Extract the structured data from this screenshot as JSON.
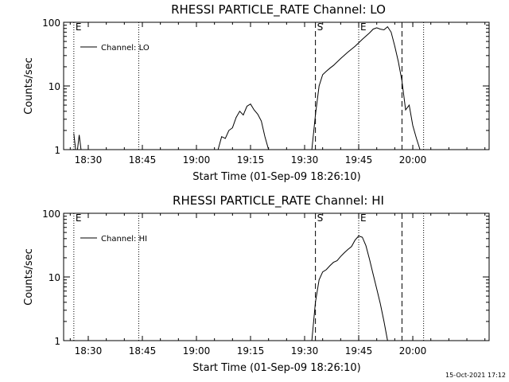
{
  "footer": {
    "timestamp": "15-Oct-2021 17:12"
  },
  "chart_data": [
    {
      "type": "line",
      "title": "RHESSI PARTICLE_RATE Channel: LO",
      "xlabel": "Start Time (01-Sep-09 18:26:10)",
      "ylabel": "Counts/sec",
      "yscale": "log",
      "ylim": [
        1,
        100
      ],
      "xlim_minutes_after_start": [
        -3,
        115
      ],
      "x_tick_labels": [
        "18:30",
        "18:45",
        "19:00",
        "19:15",
        "19:30",
        "19:45",
        "20:00"
      ],
      "y_tick_labels": [
        "1",
        "10",
        "100"
      ],
      "legend": {
        "position": "top-left",
        "entries": [
          "Channel: LO"
        ]
      },
      "markers": [
        {
          "time": "18:26",
          "style": "dotted",
          "letter": "E"
        },
        {
          "time": "18:44",
          "style": "dotted",
          "letter": ""
        },
        {
          "time": "19:33",
          "style": "dashed",
          "letter": "S"
        },
        {
          "time": "19:45",
          "style": "dotted",
          "letter": "E"
        },
        {
          "time": "19:57",
          "style": "dashed",
          "letter": ""
        },
        {
          "time": "20:03",
          "style": "dotted",
          "letter": ""
        }
      ],
      "series": [
        {
          "name": "Channel: LO",
          "segments": [
            [
              [
                "18:26",
                1.8
              ],
              [
                "18:26:30",
                1.0
              ],
              [
                "18:27",
                1.0
              ],
              [
                "18:27:30",
                1.7
              ],
              [
                "18:28",
                1.0
              ]
            ],
            [
              [
                "19:06",
                1.0
              ],
              [
                "19:07",
                1.6
              ],
              [
                "19:08",
                1.5
              ],
              [
                "19:09",
                2.0
              ],
              [
                "19:10",
                2.2
              ],
              [
                "19:11",
                3.2
              ],
              [
                "19:12",
                4.0
              ],
              [
                "19:13",
                3.5
              ],
              [
                "19:14",
                4.8
              ],
              [
                "19:15",
                5.2
              ],
              [
                "19:16",
                4.2
              ],
              [
                "19:17",
                3.6
              ],
              [
                "19:18",
                2.8
              ],
              [
                "19:19",
                1.6
              ],
              [
                "19:20",
                1.0
              ]
            ],
            [
              [
                "19:32",
                1.0
              ],
              [
                "19:33",
                3.5
              ],
              [
                "19:34",
                10
              ],
              [
                "19:35",
                15
              ],
              [
                "19:36",
                17
              ],
              [
                "19:37",
                19
              ],
              [
                "19:38",
                21
              ],
              [
                "19:40",
                27
              ],
              [
                "19:42",
                34
              ],
              [
                "19:44",
                42
              ],
              [
                "19:46",
                54
              ],
              [
                "19:48",
                68
              ],
              [
                "19:49",
                78
              ],
              [
                "19:50",
                82
              ],
              [
                "19:51",
                78
              ],
              [
                "19:52",
                76
              ],
              [
                "19:53",
                85
              ],
              [
                "19:54",
                70
              ],
              [
                "19:55",
                42
              ],
              [
                "19:56",
                24
              ],
              [
                "19:57",
                12
              ],
              [
                "19:58",
                4.2
              ],
              [
                "19:59",
                5.0
              ],
              [
                "20:00",
                2.4
              ],
              [
                "20:01",
                1.5
              ],
              [
                "20:02",
                1.0
              ]
            ]
          ]
        }
      ]
    },
    {
      "type": "line",
      "title": "RHESSI PARTICLE_RATE Channel: HI",
      "xlabel": "Start Time (01-Sep-09 18:26:10)",
      "ylabel": "Counts/sec",
      "yscale": "log",
      "ylim": [
        1,
        100
      ],
      "xlim_minutes_after_start": [
        -3,
        115
      ],
      "x_tick_labels": [
        "18:30",
        "18:45",
        "19:00",
        "19:15",
        "19:30",
        "19:45",
        "20:00"
      ],
      "y_tick_labels": [
        "1",
        "10",
        "100"
      ],
      "legend": {
        "position": "top-left",
        "entries": [
          "Channel: HI"
        ]
      },
      "markers": [
        {
          "time": "18:26",
          "style": "dotted",
          "letter": "E"
        },
        {
          "time": "18:44",
          "style": "dotted",
          "letter": ""
        },
        {
          "time": "19:33",
          "style": "dashed",
          "letter": "S"
        },
        {
          "time": "19:45",
          "style": "dotted",
          "letter": "E"
        },
        {
          "time": "19:57",
          "style": "dashed",
          "letter": ""
        },
        {
          "time": "20:03",
          "style": "dotted",
          "letter": ""
        }
      ],
      "series": [
        {
          "name": "Channel: HI",
          "segments": [
            [
              [
                "19:32",
                1.0
              ],
              [
                "19:33",
                4.0
              ],
              [
                "19:34",
                9.0
              ],
              [
                "19:35",
                12
              ],
              [
                "19:36",
                13
              ],
              [
                "19:37",
                15
              ],
              [
                "19:38",
                17
              ],
              [
                "19:39",
                18
              ],
              [
                "19:40",
                21
              ],
              [
                "19:41",
                24
              ],
              [
                "19:42",
                27
              ],
              [
                "19:43",
                30
              ],
              [
                "19:44",
                38
              ],
              [
                "19:45",
                44
              ],
              [
                "19:46",
                42
              ],
              [
                "19:47",
                31
              ],
              [
                "19:48",
                19
              ],
              [
                "19:49",
                11
              ],
              [
                "19:50",
                6.5
              ],
              [
                "19:51",
                3.8
              ],
              [
                "19:52",
                2.0
              ],
              [
                "19:53",
                1.0
              ]
            ]
          ]
        }
      ]
    }
  ]
}
